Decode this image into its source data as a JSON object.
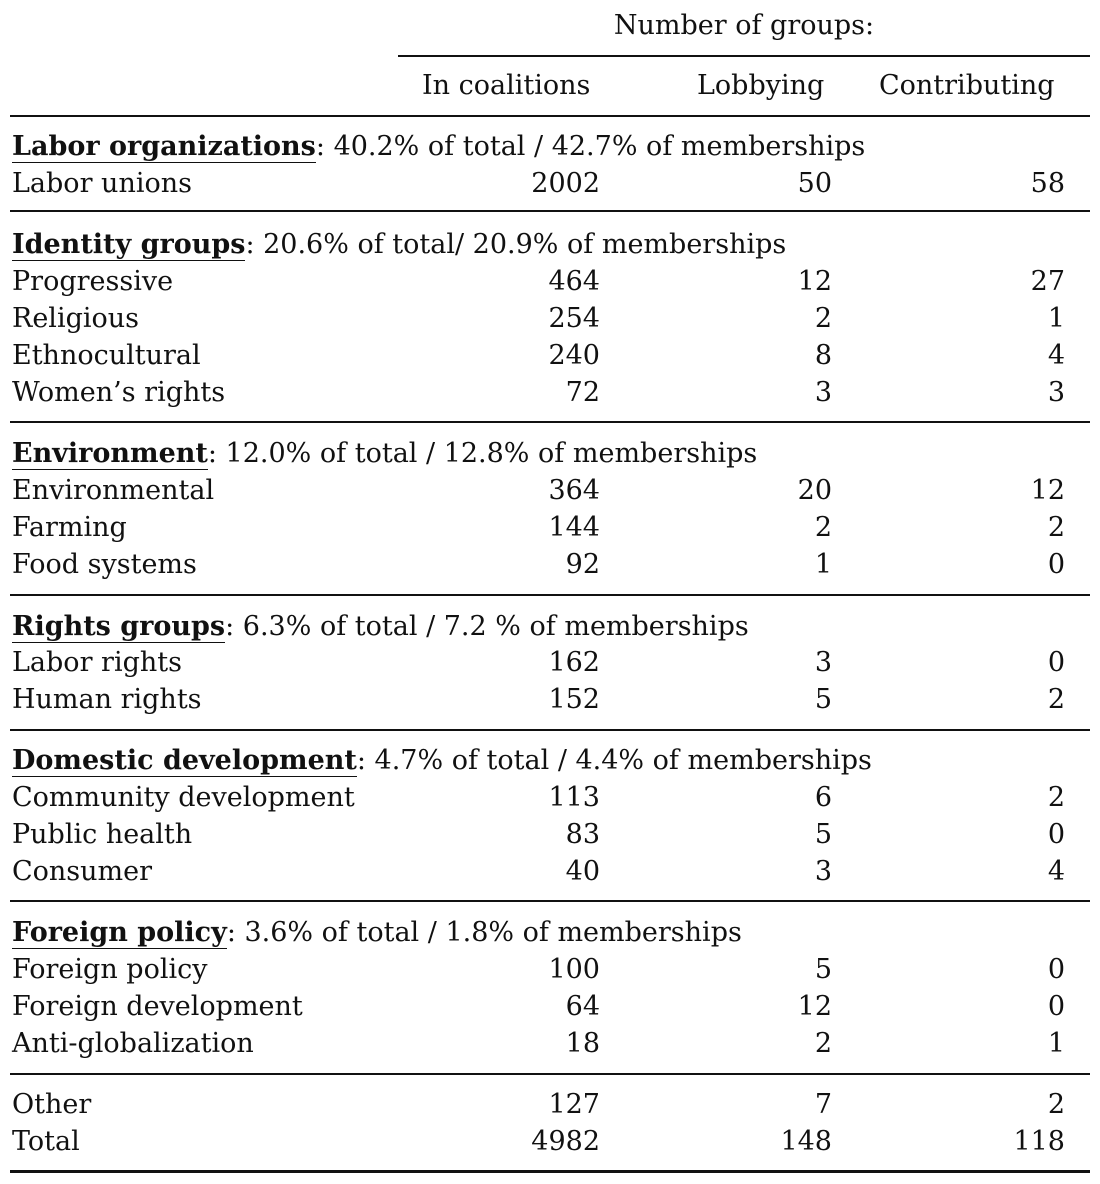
{
  "header": {
    "super_label": "Number of groups:",
    "columns": [
      "In coalitions",
      "Lobbying",
      "Contributing"
    ]
  },
  "sections": [
    {
      "name": "Labor organizations",
      "summary": ": 40.2% of total / 42.7% of memberships",
      "rows": [
        {
          "label": "Labor unions",
          "coalitions": "2002",
          "lobbying": "50",
          "contributing": "58"
        }
      ]
    },
    {
      "name": "Identity groups",
      "summary": ": 20.6% of total/ 20.9% of memberships",
      "rows": [
        {
          "label": "Progressive",
          "coalitions": "464",
          "lobbying": "12",
          "contributing": "27"
        },
        {
          "label": "Religious",
          "coalitions": "254",
          "lobbying": "2",
          "contributing": "1"
        },
        {
          "label": "Ethnocultural",
          "coalitions": "240",
          "lobbying": "8",
          "contributing": "4"
        },
        {
          "label": "Women’s rights",
          "coalitions": "72",
          "lobbying": "3",
          "contributing": "3"
        }
      ]
    },
    {
      "name": "Environment",
      "summary": ": 12.0% of total / 12.8% of memberships",
      "rows": [
        {
          "label": "Environmental",
          "coalitions": "364",
          "lobbying": "20",
          "contributing": "12"
        },
        {
          "label": "Farming",
          "coalitions": "144",
          "lobbying": "2",
          "contributing": "2"
        },
        {
          "label": "Food systems",
          "coalitions": "92",
          "lobbying": "1",
          "contributing": "0"
        }
      ]
    },
    {
      "name": "Rights groups",
      "summary": ": 6.3% of total / 7.2 % of memberships",
      "rows": [
        {
          "label": "Labor rights",
          "coalitions": "162",
          "lobbying": "3",
          "contributing": "0"
        },
        {
          "label": "Human rights",
          "coalitions": "152",
          "lobbying": "5",
          "contributing": "2"
        }
      ]
    },
    {
      "name": "Domestic development",
      "summary": ": 4.7% of total / 4.4% of memberships",
      "rows": [
        {
          "label": "Community development",
          "coalitions": "113",
          "lobbying": "6",
          "contributing": "2"
        },
        {
          "label": "Public health",
          "coalitions": "83",
          "lobbying": "5",
          "contributing": "0"
        },
        {
          "label": "Consumer",
          "coalitions": "40",
          "lobbying": "3",
          "contributing": "4"
        }
      ]
    },
    {
      "name": "Foreign policy",
      "summary": ": 3.6% of total / 1.8% of memberships",
      "rows": [
        {
          "label": "Foreign policy",
          "coalitions": "100",
          "lobbying": "5",
          "contributing": "0"
        },
        {
          "label": "Foreign development",
          "coalitions": "64",
          "lobbying": "12",
          "contributing": "0"
        },
        {
          "label": "Anti-globalization",
          "coalitions": "18",
          "lobbying": "2",
          "contributing": "1"
        }
      ]
    }
  ],
  "footer_rows": [
    {
      "label": "Other",
      "coalitions": "127",
      "lobbying": "7",
      "contributing": "2"
    },
    {
      "label": "Total",
      "coalitions": "4982",
      "lobbying": "148",
      "contributing": "118"
    }
  ]
}
